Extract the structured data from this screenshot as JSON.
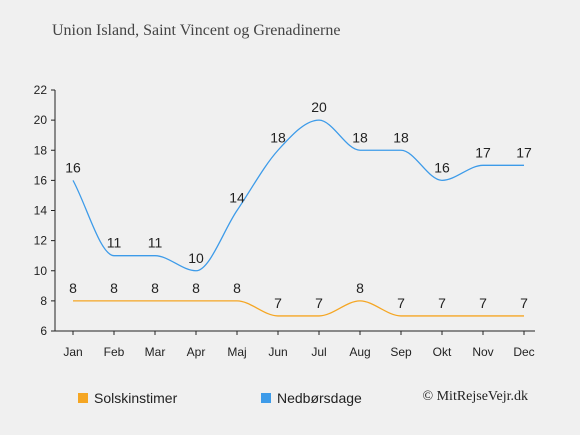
{
  "header": {
    "title": "Union Island, Saint Vincent og Grenadinerne"
  },
  "chart_data": {
    "type": "line",
    "categories": [
      "Jan",
      "Feb",
      "Mar",
      "Apr",
      "Maj",
      "Jun",
      "Jul",
      "Aug",
      "Sep",
      "Okt",
      "Nov",
      "Dec"
    ],
    "yticks": [
      6,
      8,
      10,
      12,
      14,
      16,
      18,
      20,
      22
    ],
    "ylim": [
      6,
      22
    ],
    "grid": false,
    "legend_position": "bottom",
    "series": [
      {
        "name": "Solskinstimer",
        "color": "#f5a623",
        "values": [
          8,
          8,
          8,
          8,
          8,
          7,
          7,
          8,
          7,
          7,
          7,
          7
        ]
      },
      {
        "name": "Nedbørsdage",
        "color": "#3d9be9",
        "values": [
          16,
          11,
          11,
          10,
          14,
          18,
          20,
          18,
          18,
          16,
          17,
          17
        ]
      }
    ]
  },
  "legend": {
    "items": [
      {
        "label": "Solskinstimer",
        "color": "#f5a623"
      },
      {
        "label": "Nedbørsdage",
        "color": "#3d9be9"
      }
    ]
  },
  "footer": {
    "copyright": "© MitRejseVejr.dk"
  }
}
